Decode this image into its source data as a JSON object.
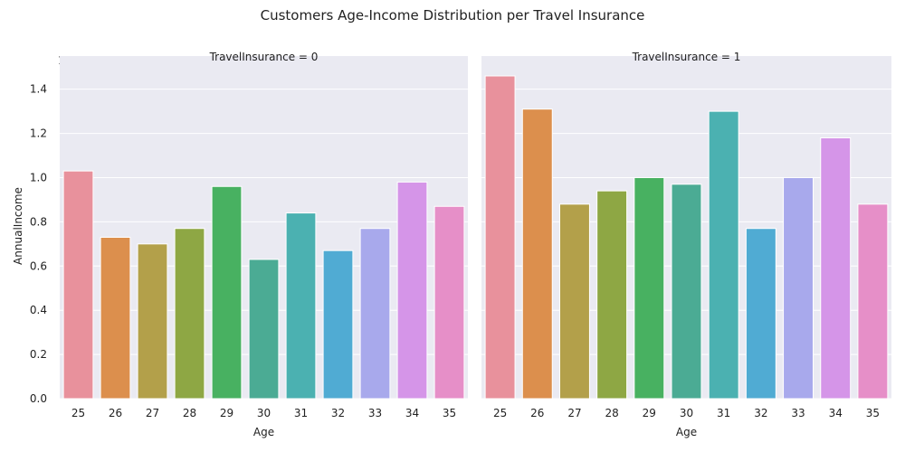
{
  "chart_data": {
    "type": "bar",
    "title": "Customers Age-Income Distribution per Travel Insurance",
    "ylabel": "AnnualIncome",
    "y_offset_label": "1e6",
    "ylim": [
      0,
      1.55
    ],
    "yticks": [
      0.0,
      0.2,
      0.4,
      0.6,
      0.8,
      1.0,
      1.2,
      1.4
    ],
    "ytick_labels": [
      "0.0",
      "0.2",
      "0.4",
      "0.6",
      "0.8",
      "1.0",
      "1.2",
      "1.4"
    ],
    "grid": true,
    "colors": [
      "#e8919c",
      "#dc8f4d",
      "#b3a04a",
      "#8ea744",
      "#48b161",
      "#4bab94",
      "#4bb1b1",
      "#50abd3",
      "#a8a9ec",
      "#d595e8",
      "#e68fc8"
    ],
    "facets": [
      {
        "title": "TravelInsurance = 0",
        "xlabel": "Age",
        "categories": [
          "25",
          "26",
          "27",
          "28",
          "29",
          "30",
          "31",
          "32",
          "33",
          "34",
          "35"
        ],
        "values": [
          1.03,
          0.73,
          0.7,
          0.77,
          0.96,
          0.63,
          0.84,
          0.67,
          0.77,
          0.98,
          0.87
        ]
      },
      {
        "title": "TravelInsurance = 1",
        "xlabel": "Age",
        "categories": [
          "25",
          "26",
          "27",
          "28",
          "29",
          "30",
          "31",
          "32",
          "33",
          "34",
          "35"
        ],
        "values": [
          1.46,
          1.31,
          0.88,
          0.94,
          1.0,
          0.97,
          1.3,
          0.77,
          1.0,
          1.18,
          0.88
        ]
      }
    ]
  }
}
